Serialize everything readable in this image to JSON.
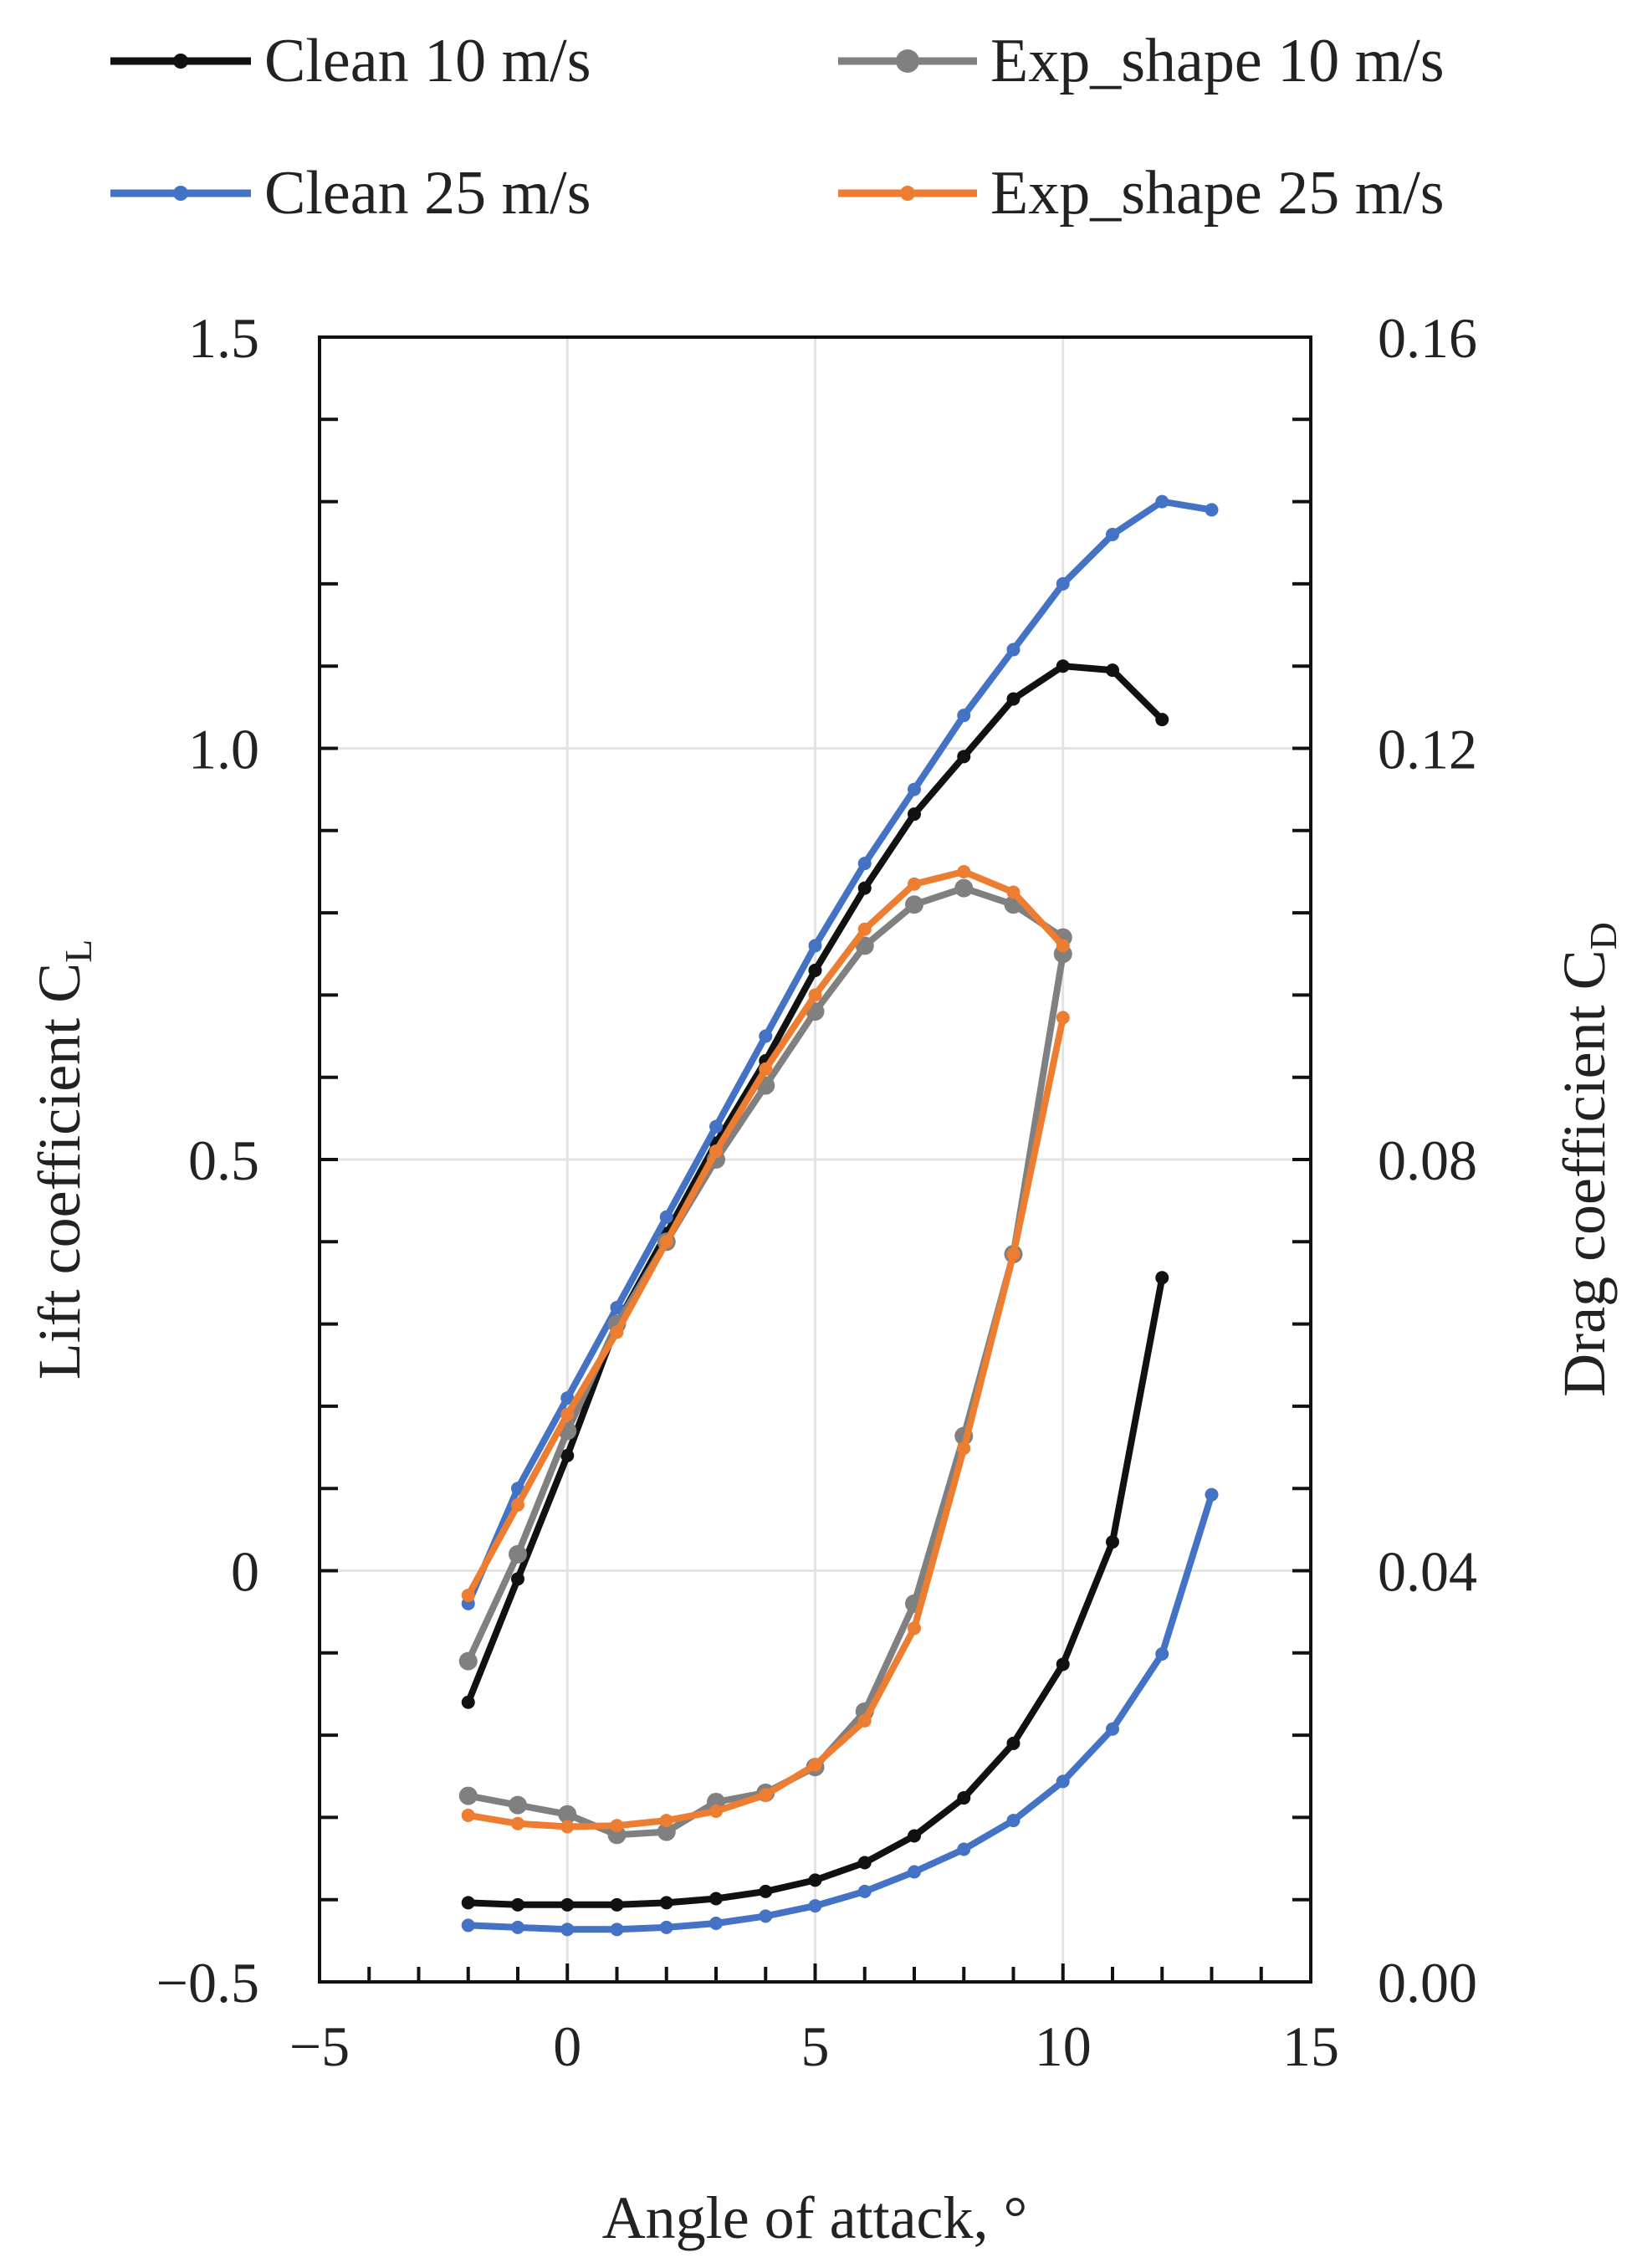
{
  "chart_data": {
    "type": "line",
    "xlabel": "Angle of attack, °",
    "ylabel_left": "Lift coefficient C",
    "ylabel_left_sub": "L",
    "ylabel_right": "Drag coefficient C",
    "ylabel_right_sub": "D",
    "xlim": [
      -5,
      15
    ],
    "ylim_left": [
      -0.5,
      1.5
    ],
    "ylim_right": [
      0.0,
      0.16
    ],
    "x_ticks": [
      "−5",
      "0",
      "5",
      "10",
      "15"
    ],
    "x_tick_values": [
      -5,
      0,
      5,
      10,
      15
    ],
    "y_left_ticks": [
      "1.5",
      "1.0",
      "0.5",
      "0",
      "−0.5"
    ],
    "y_left_tick_values": [
      1.5,
      1.0,
      0.5,
      0,
      -0.5
    ],
    "y_right_ticks": [
      "0.16",
      "0.12",
      "0.08",
      "0.04",
      "0.00"
    ],
    "y_right_tick_values": [
      0.16,
      0.12,
      0.08,
      0.04,
      0.0
    ],
    "grid": true,
    "legend_position": "top",
    "series": [
      {
        "name": "Clean 10 m/s",
        "color": "#111111",
        "marker_size": "small",
        "cl": {
          "x": [
            -2,
            -1,
            0,
            1,
            2,
            3,
            4,
            5,
            6,
            7,
            8,
            9,
            10,
            11,
            12
          ],
          "y": [
            -0.16,
            -0.01,
            0.14,
            0.3,
            0.41,
            0.52,
            0.62,
            0.73,
            0.83,
            0.92,
            0.99,
            1.06,
            1.1,
            1.095,
            1.035
          ]
        },
        "cd": {
          "x": [
            -2,
            -1,
            0,
            1,
            2,
            3,
            4,
            5,
            6,
            7,
            8,
            9,
            10,
            11,
            12
          ],
          "y": [
            0.0077,
            0.0075,
            0.0075,
            0.0075,
            0.0077,
            0.0081,
            0.0088,
            0.0099,
            0.0116,
            0.0142,
            0.0179,
            0.0232,
            0.0309,
            0.0428,
            0.0685
          ]
        }
      },
      {
        "name": "Clean 25 m/s",
        "color": "#4472c4",
        "marker_size": "small",
        "cl": {
          "x": [
            -2,
            -1,
            0,
            1,
            2,
            3,
            4,
            5,
            6,
            7,
            8,
            9,
            10,
            11,
            12,
            13
          ],
          "y": [
            -0.04,
            0.1,
            0.21,
            0.32,
            0.43,
            0.54,
            0.65,
            0.76,
            0.86,
            0.95,
            1.04,
            1.12,
            1.2,
            1.26,
            1.3,
            1.29
          ]
        },
        "cd": {
          "x": [
            -2,
            -1,
            0,
            1,
            2,
            3,
            4,
            5,
            6,
            7,
            8,
            9,
            10,
            11,
            12,
            13
          ],
          "y": [
            0.0055,
            0.0053,
            0.0051,
            0.0051,
            0.0053,
            0.0057,
            0.0064,
            0.0074,
            0.0088,
            0.0107,
            0.0129,
            0.0157,
            0.0195,
            0.0246,
            0.0319,
            0.0474
          ]
        }
      },
      {
        "name": "Exp_shape 10 m/s",
        "color": "#808080",
        "marker_size": "large",
        "cl": {
          "x": [
            -2,
            -1,
            0,
            1,
            2,
            3,
            4,
            5,
            6,
            7,
            8,
            9,
            10
          ],
          "y": [
            -0.11,
            0.02,
            0.17,
            0.3,
            0.4,
            0.5,
            0.59,
            0.68,
            0.76,
            0.81,
            0.83,
            0.81,
            0.77
          ]
        },
        "cd": {
          "x": [
            -2,
            -1,
            0,
            1,
            2,
            3,
            4,
            5,
            6,
            7,
            8,
            9,
            10
          ],
          "y": [
            0.0181,
            0.0172,
            0.0163,
            0.0143,
            0.0146,
            0.0175,
            0.0184,
            0.0209,
            0.0263,
            0.0368,
            0.0531,
            0.0708,
            0.1
          ]
        }
      },
      {
        "name": "Exp_shape 25 m/s",
        "color": "#ed7d31",
        "marker_size": "small",
        "cl": {
          "x": [
            -2,
            -1,
            0,
            1,
            2,
            3,
            4,
            5,
            6,
            7,
            8,
            9,
            10
          ],
          "y": [
            -0.03,
            0.08,
            0.19,
            0.29,
            0.4,
            0.51,
            0.61,
            0.7,
            0.78,
            0.835,
            0.85,
            0.825,
            0.76
          ]
        },
        "cd": {
          "x": [
            -2,
            -1,
            0,
            1,
            2,
            3,
            4,
            5,
            6,
            7,
            8,
            9,
            10
          ],
          "y": [
            0.0162,
            0.0154,
            0.0151,
            0.0152,
            0.0157,
            0.0166,
            0.0182,
            0.0211,
            0.0254,
            0.0344,
            0.0519,
            0.0708,
            0.0938
          ]
        }
      }
    ]
  }
}
